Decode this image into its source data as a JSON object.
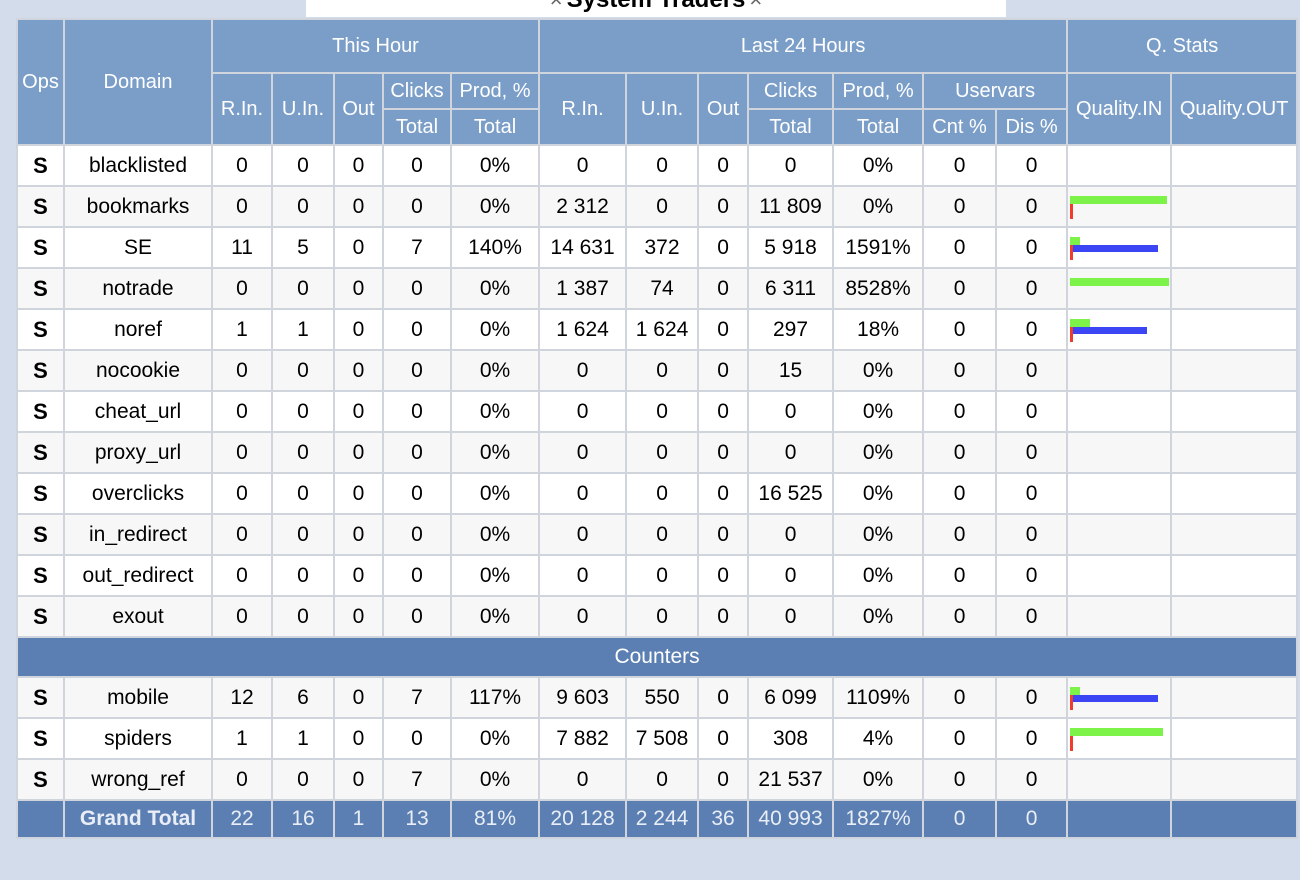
{
  "window": {
    "title": "System Traders",
    "close_glyph": "×"
  },
  "header": {
    "ops": "Ops",
    "domain": "Domain",
    "this_hour": "This Hour",
    "last_24": "Last 24 Hours",
    "qstats": "Q. Stats",
    "r_in": "R.In.",
    "u_in": "U.In.",
    "out": "Out",
    "clicks": "Clicks",
    "prod": "Prod, %",
    "total": "Total",
    "uservars": "Uservars",
    "cnt": "Cnt %",
    "dis": "Dis %",
    "quality_in": "Quality.IN",
    "quality_out": "Quality.OUT"
  },
  "rows": [
    {
      "ops": "S",
      "domain": "blacklisted",
      "h_rin": "0",
      "h_uin": "0",
      "h_out": "0",
      "h_clicks": "0",
      "h_prod": "0%",
      "d_rin": "0",
      "d_uin": "0",
      "d_out": "0",
      "d_clicks": "0",
      "d_prod": "0%",
      "cnt": "0",
      "dis": "0",
      "q": null
    },
    {
      "ops": "S",
      "domain": "bookmarks",
      "h_rin": "0",
      "h_uin": "0",
      "h_out": "0",
      "h_clicks": "0",
      "h_prod": "0%",
      "d_rin": "2 312",
      "d_uin": "0",
      "d_out": "0",
      "d_clicks": "11 809",
      "d_prod": "0%",
      "cnt": "0",
      "dis": "0",
      "q": {
        "green": 0.97,
        "blue": 0,
        "red": true
      }
    },
    {
      "ops": "S",
      "domain": "SE",
      "h_rin": "11",
      "h_uin": "5",
      "h_out": "0",
      "h_clicks": "7",
      "h_prod": "140%",
      "d_rin": "14 631",
      "d_uin": "372",
      "d_out": "0",
      "d_clicks": "5 918",
      "d_prod": "1591%",
      "cnt": "0",
      "dis": "0",
      "q": {
        "green": 0.1,
        "blue": 0.88,
        "red": true
      }
    },
    {
      "ops": "S",
      "domain": "notrade",
      "h_rin": "0",
      "h_uin": "0",
      "h_out": "0",
      "h_clicks": "0",
      "h_prod": "0%",
      "d_rin": "1 387",
      "d_uin": "74",
      "d_out": "0",
      "d_clicks": "6 311",
      "d_prod": "8528%",
      "cnt": "0",
      "dis": "0",
      "q": {
        "green": 0.99,
        "blue": 0,
        "red": false
      }
    },
    {
      "ops": "S",
      "domain": "noref",
      "h_rin": "1",
      "h_uin": "1",
      "h_out": "0",
      "h_clicks": "0",
      "h_prod": "0%",
      "d_rin": "1 624",
      "d_uin": "1 624",
      "d_out": "0",
      "d_clicks": "297",
      "d_prod": "18%",
      "cnt": "0",
      "dis": "0",
      "q": {
        "green": 0.2,
        "blue": 0.77,
        "red": true
      }
    },
    {
      "ops": "S",
      "domain": "nocookie",
      "h_rin": "0",
      "h_uin": "0",
      "h_out": "0",
      "h_clicks": "0",
      "h_prod": "0%",
      "d_rin": "0",
      "d_uin": "0",
      "d_out": "0",
      "d_clicks": "15",
      "d_prod": "0%",
      "cnt": "0",
      "dis": "0",
      "q": null
    },
    {
      "ops": "S",
      "domain": "cheat_url",
      "h_rin": "0",
      "h_uin": "0",
      "h_out": "0",
      "h_clicks": "0",
      "h_prod": "0%",
      "d_rin": "0",
      "d_uin": "0",
      "d_out": "0",
      "d_clicks": "0",
      "d_prod": "0%",
      "cnt": "0",
      "dis": "0",
      "q": null
    },
    {
      "ops": "S",
      "domain": "proxy_url",
      "h_rin": "0",
      "h_uin": "0",
      "h_out": "0",
      "h_clicks": "0",
      "h_prod": "0%",
      "d_rin": "0",
      "d_uin": "0",
      "d_out": "0",
      "d_clicks": "0",
      "d_prod": "0%",
      "cnt": "0",
      "dis": "0",
      "q": null
    },
    {
      "ops": "S",
      "domain": "overclicks",
      "h_rin": "0",
      "h_uin": "0",
      "h_out": "0",
      "h_clicks": "0",
      "h_prod": "0%",
      "d_rin": "0",
      "d_uin": "0",
      "d_out": "0",
      "d_clicks": "16 525",
      "d_prod": "0%",
      "cnt": "0",
      "dis": "0",
      "q": null
    },
    {
      "ops": "S",
      "domain": "in_redirect",
      "h_rin": "0",
      "h_uin": "0",
      "h_out": "0",
      "h_clicks": "0",
      "h_prod": "0%",
      "d_rin": "0",
      "d_uin": "0",
      "d_out": "0",
      "d_clicks": "0",
      "d_prod": "0%",
      "cnt": "0",
      "dis": "0",
      "q": null
    },
    {
      "ops": "S",
      "domain": "out_redirect",
      "h_rin": "0",
      "h_uin": "0",
      "h_out": "0",
      "h_clicks": "0",
      "h_prod": "0%",
      "d_rin": "0",
      "d_uin": "0",
      "d_out": "0",
      "d_clicks": "0",
      "d_prod": "0%",
      "cnt": "0",
      "dis": "0",
      "q": null
    },
    {
      "ops": "S",
      "domain": "exout",
      "h_rin": "0",
      "h_uin": "0",
      "h_out": "0",
      "h_clicks": "0",
      "h_prod": "0%",
      "d_rin": "0",
      "d_uin": "0",
      "d_out": "0",
      "d_clicks": "0",
      "d_prod": "0%",
      "cnt": "0",
      "dis": "0",
      "q": null
    }
  ],
  "section_label": "Counters",
  "counter_rows": [
    {
      "ops": "S",
      "domain": "mobile",
      "h_rin": "12",
      "h_uin": "6",
      "h_out": "0",
      "h_clicks": "7",
      "h_prod": "117%",
      "d_rin": "9 603",
      "d_uin": "550",
      "d_out": "0",
      "d_clicks": "6 099",
      "d_prod": "1109%",
      "cnt": "0",
      "dis": "0",
      "q": {
        "green": 0.1,
        "blue": 0.88,
        "red": true
      }
    },
    {
      "ops": "S",
      "domain": "spiders",
      "h_rin": "1",
      "h_uin": "1",
      "h_out": "0",
      "h_clicks": "0",
      "h_prod": "0%",
      "d_rin": "7 882",
      "d_uin": "7 508",
      "d_out": "0",
      "d_clicks": "308",
      "d_prod": "4%",
      "cnt": "0",
      "dis": "0",
      "q": {
        "green": 0.93,
        "blue": 0.02,
        "red": true
      }
    },
    {
      "ops": "S",
      "domain": "wrong_ref",
      "h_rin": "0",
      "h_uin": "0",
      "h_out": "0",
      "h_clicks": "7",
      "h_prod": "0%",
      "d_rin": "0",
      "d_uin": "0",
      "d_out": "0",
      "d_clicks": "21 537",
      "d_prod": "0%",
      "cnt": "0",
      "dis": "0",
      "q": null
    }
  ],
  "grand_total": {
    "label": "Grand Total",
    "h_rin": "22",
    "h_uin": "16",
    "h_out": "1",
    "h_clicks": "13",
    "h_prod": "81%",
    "d_rin": "20 128",
    "d_uin": "2 244",
    "d_out": "36",
    "d_clicks": "40 993",
    "d_prod": "1827%",
    "cnt": "0",
    "dis": "0"
  },
  "colors": {
    "header_bg": "#7b9ec9",
    "section_bg": "#5b7fb2",
    "bar_green": "#7df34a",
    "bar_blue": "#3b45f3",
    "bar_red": "#f03b2f"
  }
}
